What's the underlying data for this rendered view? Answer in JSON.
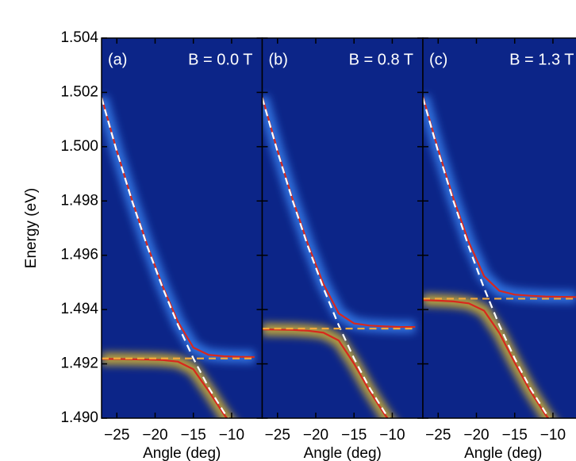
{
  "chart_data": [
    {
      "type": "line",
      "title": "(a)",
      "annotation": "B = 0.0 T",
      "xlabel": "Angle (deg)",
      "ylabel": "Energy (eV)",
      "x": [
        -27,
        -25,
        -23,
        -21,
        -19,
        -17,
        -15,
        -13,
        -11,
        -9,
        -7
      ],
      "xlim": [
        -27,
        -6
      ],
      "xticks": [
        {
          "value": -25,
          "label": "−25"
        },
        {
          "value": -20,
          "label": "−20"
        },
        {
          "value": -15,
          "label": "−15"
        },
        {
          "value": -10,
          "label": "−10"
        }
      ],
      "ylim": [
        1.49,
        1.504
      ],
      "yticks": [
        {
          "value": 1.49,
          "label": "1.490"
        },
        {
          "value": 1.492,
          "label": "1.492"
        },
        {
          "value": 1.494,
          "label": "1.494"
        },
        {
          "value": 1.496,
          "label": "1.496"
        },
        {
          "value": 1.498,
          "label": "1.498"
        },
        {
          "value": 1.5,
          "label": "1.500"
        },
        {
          "value": 1.502,
          "label": "1.502"
        },
        {
          "value": 1.504,
          "label": "1.504"
        }
      ],
      "background": "#0c2588",
      "series": [
        {
          "color": "#d8281e",
          "glow": "#3f8fff",
          "values": [
            1.50182,
            1.49984,
            1.49802,
            1.49635,
            1.49485,
            1.49354,
            1.4926,
            1.49233,
            1.49228,
            1.49226,
            1.49225
          ]
        },
        {
          "color": "#d8281e",
          "glow": "#ffd21a",
          "values": [
            1.49218,
            1.49218,
            1.49217,
            1.49216,
            1.49214,
            1.49208,
            1.4918,
            1.491,
            1.49014,
            1.48939,
            1.48879
          ]
        },
        {
          "color": "#ffffff",
          "dashed": true,
          "values": [
            1.5018,
            1.49982,
            1.49799,
            1.49631,
            1.49479,
            1.49342,
            1.4922,
            1.49113,
            1.49022,
            1.48945,
            1.48884
          ]
        },
        {
          "color": "#f2a93b",
          "dashed": true,
          "values": [
            1.4922,
            1.4922,
            1.4922,
            1.4922,
            1.4922,
            1.4922,
            1.4922,
            1.4922,
            1.4922,
            1.4922,
            1.4922
          ]
        }
      ]
    },
    {
      "type": "line",
      "title": "(b)",
      "annotation": "B = 0.8 T",
      "xlabel": "Angle (deg)",
      "x": [
        -27,
        -25,
        -23,
        -21,
        -19,
        -17,
        -15,
        -13,
        -11,
        -9,
        -7
      ],
      "xlim": [
        -27,
        -6
      ],
      "xticks": [
        {
          "value": -25,
          "label": "−25"
        },
        {
          "value": -20,
          "label": "−20"
        },
        {
          "value": -15,
          "label": "−15"
        },
        {
          "value": -10,
          "label": "−10"
        }
      ],
      "ylim": [
        1.49,
        1.504
      ],
      "yticks": [
        1.49,
        1.492,
        1.494,
        1.496,
        1.498,
        1.5,
        1.502,
        1.504
      ],
      "background": "#0c2588",
      "series": [
        {
          "color": "#d8281e",
          "glow": "#3f8fff",
          "values": [
            1.50183,
            1.49986,
            1.49804,
            1.49639,
            1.49494,
            1.49386,
            1.49349,
            1.49341,
            1.49338,
            1.49336,
            1.49336
          ]
        },
        {
          "color": "#d8281e",
          "glow": "#ffd21a",
          "values": [
            1.49327,
            1.49326,
            1.49325,
            1.49322,
            1.49315,
            1.49286,
            1.49201,
            1.49102,
            1.49014,
            1.48939,
            1.48879
          ]
        },
        {
          "color": "#ffffff",
          "dashed": true,
          "values": [
            1.5018,
            1.49982,
            1.49799,
            1.49631,
            1.49479,
            1.49342,
            1.4922,
            1.49113,
            1.49022,
            1.48945,
            1.48884
          ]
        },
        {
          "color": "#f2a93b",
          "dashed": true,
          "values": [
            1.4933,
            1.4933,
            1.4933,
            1.4933,
            1.4933,
            1.4933,
            1.4933,
            1.4933,
            1.4933,
            1.4933,
            1.4933
          ]
        }
      ]
    },
    {
      "type": "line",
      "title": "(c)",
      "annotation": "B = 1.3 T",
      "xlabel": "Angle (deg)",
      "x": [
        -27,
        -25,
        -23,
        -21,
        -19,
        -17,
        -15,
        -13,
        -11,
        -9,
        -7
      ],
      "xlim": [
        -27,
        -6
      ],
      "xticks": [
        {
          "value": -25,
          "label": "−25"
        },
        {
          "value": -20,
          "label": "−20"
        },
        {
          "value": -15,
          "label": "−15"
        },
        {
          "value": -10,
          "label": "−10"
        }
      ],
      "ylim": [
        1.49,
        1.504
      ],
      "yticks": [
        1.49,
        1.492,
        1.494,
        1.496,
        1.498,
        1.5,
        1.502,
        1.504
      ],
      "background": "#0c2588",
      "series": [
        {
          "color": "#d8281e",
          "glow": "#3f8fff",
          "values": [
            1.50185,
            1.49989,
            1.49809,
            1.49648,
            1.49523,
            1.49469,
            1.49455,
            1.49451,
            1.49448,
            1.49447,
            1.49446
          ]
        },
        {
          "color": "#d8281e",
          "glow": "#ffd21a",
          "values": [
            1.49435,
            1.49433,
            1.4943,
            1.49423,
            1.49396,
            1.49314,
            1.49205,
            1.49102,
            1.49014,
            1.48938,
            1.48878
          ]
        },
        {
          "color": "#ffffff",
          "dashed": true,
          "values": [
            1.5018,
            1.49982,
            1.49799,
            1.49631,
            1.49479,
            1.49342,
            1.4922,
            1.49113,
            1.49022,
            1.48945,
            1.48884
          ]
        },
        {
          "color": "#f2a93b",
          "dashed": true,
          "values": [
            1.4944,
            1.4944,
            1.4944,
            1.4944,
            1.4944,
            1.4944,
            1.4944,
            1.4944,
            1.4944,
            1.4944,
            1.4944
          ]
        }
      ]
    }
  ]
}
